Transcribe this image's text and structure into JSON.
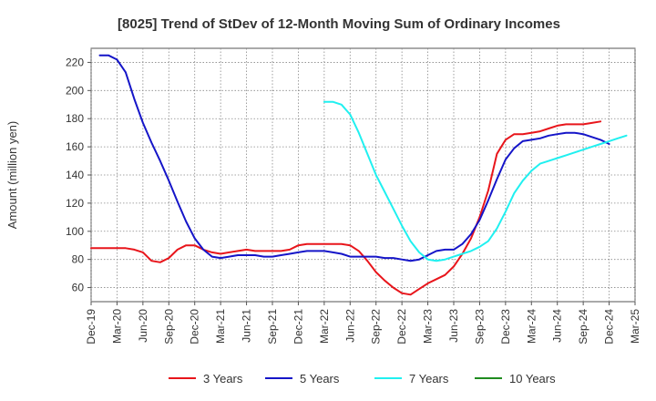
{
  "chart_data": {
    "type": "line",
    "title": "[8025]  Trend of StDev of 12-Month Moving Sum of Ordinary Incomes",
    "xlabel": "",
    "ylabel": "Amount (million yen)",
    "ylim": [
      50,
      230
    ],
    "yticks": [
      60,
      80,
      100,
      120,
      140,
      160,
      180,
      200,
      220
    ],
    "x_tick_labels": [
      "Dec-19",
      "Mar-20",
      "Jun-20",
      "Sep-20",
      "Dec-20",
      "Mar-21",
      "Jun-21",
      "Sep-21",
      "Dec-21",
      "Mar-22",
      "Jun-22",
      "Sep-22",
      "Dec-22",
      "Mar-23",
      "Jun-23",
      "Sep-23",
      "Dec-23",
      "Mar-24",
      "Jun-24",
      "Sep-24",
      "Dec-24",
      "Mar-25"
    ],
    "grid": true,
    "legend_position": "bottom",
    "series": [
      {
        "name": "3 Years",
        "color": "#e8151b",
        "start_index": 0,
        "values": [
          88,
          88,
          88,
          88,
          88,
          87,
          85,
          79,
          78,
          81,
          87,
          90,
          90,
          87,
          85,
          84,
          85,
          86,
          87,
          86,
          86,
          86,
          86,
          87,
          90,
          91,
          91,
          91,
          91,
          91,
          90,
          86,
          79,
          71,
          65,
          60,
          56,
          55,
          59,
          63,
          66,
          69,
          75,
          84,
          95,
          110,
          129,
          155,
          165,
          169,
          169,
          170,
          171,
          173,
          175,
          176,
          176,
          176,
          177,
          178
        ]
      },
      {
        "name": "5 Years",
        "color": "#1515c8",
        "start_index": 1,
        "values": [
          225,
          225,
          222,
          213,
          194,
          177,
          163,
          150,
          136,
          121,
          107,
          95,
          87,
          82,
          81,
          82,
          83,
          83,
          83,
          82,
          82,
          83,
          84,
          85,
          86,
          86,
          86,
          85,
          84,
          82,
          82,
          82,
          82,
          81,
          81,
          80,
          79,
          80,
          83,
          86,
          87,
          87,
          91,
          98,
          108,
          122,
          137,
          151,
          159,
          164,
          165,
          166,
          168,
          169,
          170,
          170,
          169,
          167,
          165,
          162
        ]
      },
      {
        "name": "7 Years",
        "color": "#20f0f0",
        "start_index": 27,
        "values": [
          192,
          192,
          190,
          183,
          170,
          155,
          140,
          128,
          116,
          104,
          93,
          85,
          80,
          79,
          80,
          82,
          84,
          86,
          89,
          93,
          102,
          114,
          127,
          136,
          143,
          148,
          150,
          152,
          154,
          156,
          158,
          160,
          162,
          164,
          166,
          168
        ]
      },
      {
        "name": "10 Years",
        "color": "#1f8c1f",
        "start_index": 0,
        "values": []
      }
    ]
  }
}
